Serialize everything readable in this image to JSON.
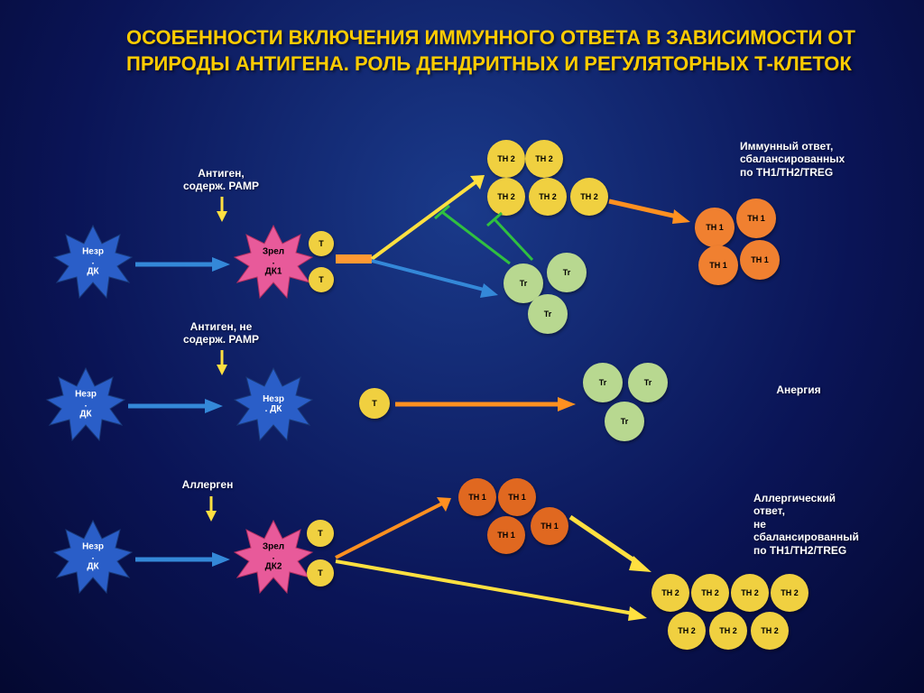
{
  "title": "ОСОБЕННОСТИ ВКЛЮЧЕНИЯ ИММУННОГО ОТВЕТА В ЗАВИСИМОСТИ ОТ ПРИРОДЫ АНТИГЕНА. РОЛЬ ДЕНДРИТНЫХ И РЕГУЛЯТОРНЫХ Т-КЛЕТОК",
  "colors": {
    "blue_star": "#2a5ec8",
    "pink_star": "#e85a9a",
    "yellow_cell": "#f0d040",
    "orange_cell": "#f08030",
    "dark_orange": "#e06820",
    "green_cell": "#b8d890",
    "arrow_blue": "#3488d8",
    "arrow_orange": "#ff9020",
    "arrow_yellow": "#ffe040",
    "inhibit_green": "#30c040"
  },
  "labels": {
    "antigen_pamp": "Антиген,\nсодерж. РАМР",
    "antigen_no_pamp": "Антиген, не\nсодерж. РАМР",
    "allergen": "Аллерген",
    "immature_dc": "Незр\n.\nДК",
    "mature_dc": "Зрел\n.\nДК1",
    "mature_dc2": "Зрел\n.\nДК2",
    "immature_dc_only": "Незр\n. ДК",
    "t": "T",
    "th1": "TH\n1",
    "th2": "TH\n2",
    "tr": "Tr",
    "balanced": "Иммунный ответ,\nсбалансированных\nпо TH1/TH2/TREG",
    "anergy": "Анергия",
    "allergic": "Аллергический\nответ,\nне\nсбалансированный\nпо TH1/TH2/TREG"
  }
}
